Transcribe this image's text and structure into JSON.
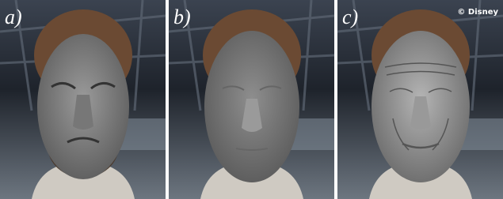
{
  "panels": [
    {
      "label": "a)"
    },
    {
      "label": "b)"
    },
    {
      "label": "c)"
    }
  ],
  "copyright": "© Disney"
}
